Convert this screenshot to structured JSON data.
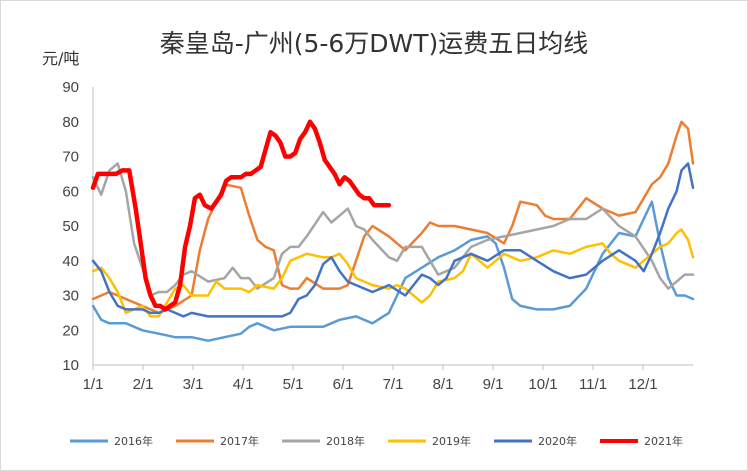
{
  "chart_data": {
    "type": "line",
    "title": "秦皇岛-广州(5-6万DWT)运费五日均线",
    "ylabel": "元/吨",
    "xlabel": "",
    "ylim": [
      10,
      90
    ],
    "yticks": [
      10,
      20,
      30,
      40,
      50,
      60,
      70,
      80,
      90
    ],
    "xticks": [
      "1/1",
      "2/1",
      "3/1",
      "4/1",
      "5/1",
      "6/1",
      "7/1",
      "8/1",
      "9/1",
      "10/1",
      "11/1",
      "12/1"
    ],
    "xlim": [
      0,
      365
    ],
    "grid": "none",
    "legend_position": "bottom",
    "series": [
      {
        "name": "2016年",
        "color": "#5b9bd5",
        "width": 2.5,
        "x": [
          0,
          5,
          10,
          20,
          30,
          40,
          50,
          60,
          70,
          80,
          90,
          95,
          100,
          110,
          120,
          130,
          140,
          150,
          160,
          170,
          180,
          190,
          200,
          210,
          220,
          230,
          240,
          245,
          250,
          255,
          260,
          270,
          280,
          290,
          300,
          310,
          320,
          330,
          340,
          345,
          350,
          355,
          360,
          365
        ],
        "y": [
          27,
          23,
          22,
          22,
          20,
          19,
          18,
          18,
          17,
          18,
          19,
          21,
          22,
          20,
          21,
          21,
          21,
          23,
          24,
          22,
          25,
          35,
          38,
          41,
          43,
          46,
          47,
          45,
          38,
          29,
          27,
          26,
          26,
          27,
          32,
          42,
          48,
          47,
          57,
          45,
          35,
          30,
          30,
          29
        ]
      },
      {
        "name": "2017年",
        "color": "#ed7d31",
        "width": 2.5,
        "x": [
          0,
          10,
          20,
          30,
          40,
          50,
          60,
          65,
          70,
          80,
          90,
          95,
          100,
          105,
          110,
          115,
          120,
          125,
          130,
          140,
          150,
          155,
          160,
          165,
          170,
          180,
          185,
          190,
          200,
          205,
          210,
          220,
          230,
          240,
          250,
          255,
          260,
          270,
          275,
          280,
          290,
          300,
          310,
          320,
          330,
          335,
          340,
          345,
          350,
          355,
          358,
          362,
          365
        ],
        "y": [
          29,
          31,
          29,
          27,
          25,
          27,
          30,
          43,
          52,
          62,
          61,
          53,
          46,
          44,
          43,
          33,
          32,
          32,
          35,
          32,
          32,
          33,
          40,
          47,
          50,
          47,
          45,
          43,
          48,
          51,
          50,
          50,
          49,
          48,
          45,
          50,
          57,
          56,
          53,
          52,
          52,
          58,
          55,
          53,
          54,
          58,
          62,
          64,
          68,
          76,
          80,
          78,
          68
        ]
      },
      {
        "name": "2018年",
        "color": "#a5a5a5",
        "width": 2.5,
        "x": [
          0,
          5,
          10,
          15,
          20,
          25,
          30,
          35,
          40,
          45,
          50,
          55,
          60,
          70,
          80,
          85,
          90,
          95,
          100,
          110,
          115,
          120,
          125,
          130,
          140,
          145,
          150,
          155,
          160,
          165,
          170,
          180,
          185,
          190,
          200,
          210,
          220,
          230,
          240,
          250,
          260,
          270,
          280,
          290,
          300,
          310,
          320,
          330,
          340,
          345,
          350,
          355,
          360,
          365
        ],
        "y": [
          64,
          59,
          66,
          68,
          60,
          45,
          38,
          30,
          31,
          31,
          33,
          36,
          37,
          34,
          35,
          38,
          35,
          35,
          32,
          35,
          42,
          44,
          44,
          47,
          54,
          51,
          53,
          55,
          50,
          49,
          46,
          41,
          40,
          44,
          44,
          36,
          38,
          44,
          46,
          47,
          48,
          49,
          50,
          52,
          52,
          55,
          50,
          47,
          40,
          35,
          32,
          34,
          36,
          36
        ]
      },
      {
        "name": "2019年",
        "color": "#ffc000",
        "width": 2.5,
        "x": [
          0,
          5,
          10,
          15,
          20,
          25,
          30,
          35,
          40,
          45,
          50,
          55,
          60,
          70,
          75,
          80,
          90,
          95,
          100,
          110,
          115,
          120,
          125,
          130,
          140,
          145,
          150,
          155,
          160,
          170,
          180,
          185,
          190,
          200,
          205,
          210,
          220,
          225,
          230,
          240,
          250,
          260,
          270,
          280,
          290,
          300,
          310,
          315,
          320,
          330,
          340,
          345,
          350,
          355,
          358,
          362,
          365
        ],
        "y": [
          37,
          38,
          35,
          31,
          25,
          26,
          27,
          24,
          24,
          28,
          32,
          33,
          30,
          30,
          34,
          32,
          32,
          31,
          33,
          32,
          35,
          40,
          41,
          42,
          41,
          41,
          42,
          39,
          35,
          33,
          32,
          33,
          32,
          28,
          30,
          34,
          35,
          37,
          42,
          38,
          42,
          40,
          41,
          43,
          42,
          44,
          45,
          42,
          40,
          38,
          42,
          44,
          45,
          48,
          49,
          46,
          41
        ]
      },
      {
        "name": "2020年",
        "color": "#4472c4",
        "width": 2.5,
        "x": [
          0,
          5,
          10,
          15,
          20,
          25,
          30,
          35,
          40,
          45,
          50,
          55,
          60,
          70,
          80,
          90,
          100,
          110,
          115,
          120,
          125,
          130,
          135,
          140,
          145,
          150,
          155,
          160,
          170,
          180,
          190,
          200,
          205,
          210,
          215,
          220,
          230,
          240,
          250,
          260,
          270,
          280,
          290,
          300,
          310,
          320,
          330,
          335,
          340,
          345,
          350,
          355,
          358,
          362,
          365
        ],
        "y": [
          40,
          37,
          31,
          27,
          26,
          26,
          26,
          25,
          25,
          26,
          25,
          24,
          25,
          24,
          24,
          24,
          24,
          24,
          24,
          25,
          29,
          30,
          33,
          39,
          41,
          37,
          34,
          33,
          31,
          33,
          30,
          36,
          35,
          33,
          35,
          40,
          42,
          40,
          43,
          43,
          40,
          37,
          35,
          36,
          40,
          43,
          40,
          37,
          42,
          48,
          55,
          60,
          66,
          68,
          61
        ]
      },
      {
        "name": "2021年",
        "color": "#ff0000",
        "width": 4.5,
        "x": [
          0,
          3,
          6,
          10,
          14,
          18,
          22,
          26,
          29,
          32,
          35,
          38,
          41,
          44,
          47,
          50,
          53,
          56,
          59,
          62,
          65,
          68,
          72,
          75,
          78,
          81,
          84,
          87,
          90,
          93,
          96,
          99,
          102,
          105,
          108,
          111,
          114,
          117,
          120,
          123,
          126,
          129,
          132,
          135,
          138,
          141,
          144,
          147,
          150,
          153,
          156,
          159,
          162,
          165,
          168,
          171,
          174,
          177,
          180
        ],
        "y": [
          61,
          65,
          65,
          65,
          65,
          66,
          66,
          55,
          45,
          35,
          30,
          27,
          27,
          26,
          27,
          28,
          33,
          44,
          50,
          58,
          59,
          56,
          55,
          57,
          59,
          63,
          64,
          64,
          64,
          65,
          65,
          66,
          67,
          72,
          77,
          76,
          74,
          70,
          70,
          71,
          75,
          77,
          80,
          78,
          74,
          69,
          67,
          65,
          62,
          64,
          63,
          61,
          59,
          58,
          58,
          56,
          56,
          56,
          56
        ]
      }
    ]
  }
}
